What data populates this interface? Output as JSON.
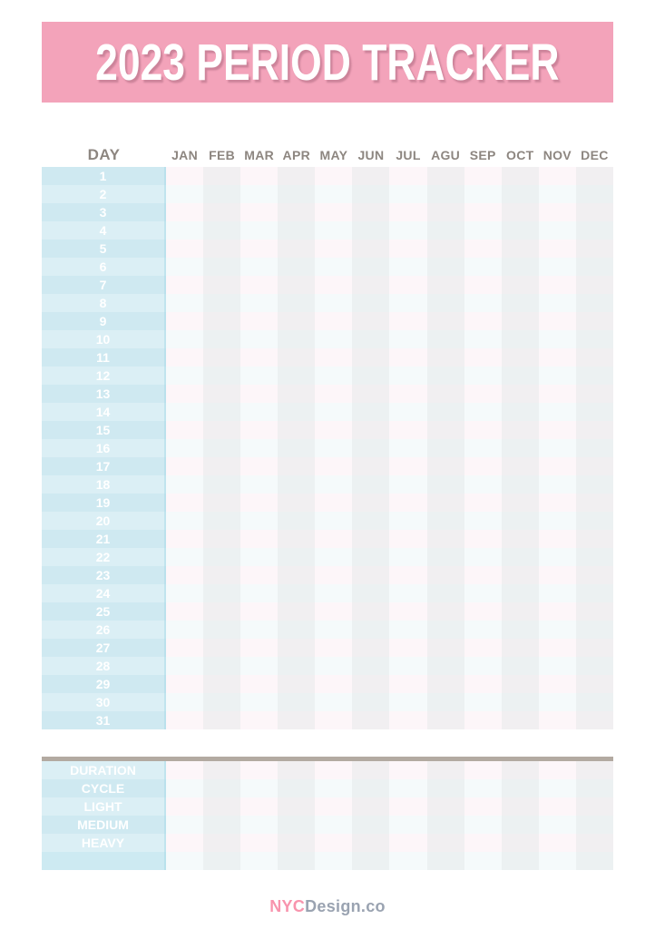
{
  "banner": {
    "title": "2023 PERIOD TRACKER"
  },
  "table": {
    "day_header": "DAY",
    "months": [
      "JAN",
      "FEB",
      "MAR",
      "APR",
      "MAY",
      "JUN",
      "JUL",
      "AGU",
      "SEP",
      "OCT",
      "NOV",
      "DEC"
    ],
    "days": [
      "1",
      "2",
      "3",
      "4",
      "5",
      "6",
      "7",
      "8",
      "9",
      "10",
      "11",
      "12",
      "13",
      "14",
      "15",
      "16",
      "17",
      "18",
      "19",
      "20",
      "21",
      "22",
      "23",
      "24",
      "25",
      "26",
      "27",
      "28",
      "29",
      "30",
      "31"
    ]
  },
  "summary": {
    "rows": [
      "DURATION",
      "CYCLE",
      "LIGHT",
      "MEDIUM",
      "HEAVY",
      ""
    ]
  },
  "footer": {
    "brand_prefix": "NYC",
    "brand_suffix": "Design.co"
  },
  "colors": {
    "banner_pink": "#f3a3ba",
    "taupe": "#b3aaa1",
    "head_text": "#8d8680",
    "day_dark": "#cfe9f1",
    "day_light": "#dbeff5",
    "day_sat": "#cdeaf2",
    "cell_wp": "#fdf6f9",
    "cell_wb": "#f5fafb",
    "cell_gp": "#f1eff1",
    "cell_gb": "#ecf1f2",
    "brand_pink": "#f894ad",
    "brand_gray": "#9aa3b1"
  }
}
